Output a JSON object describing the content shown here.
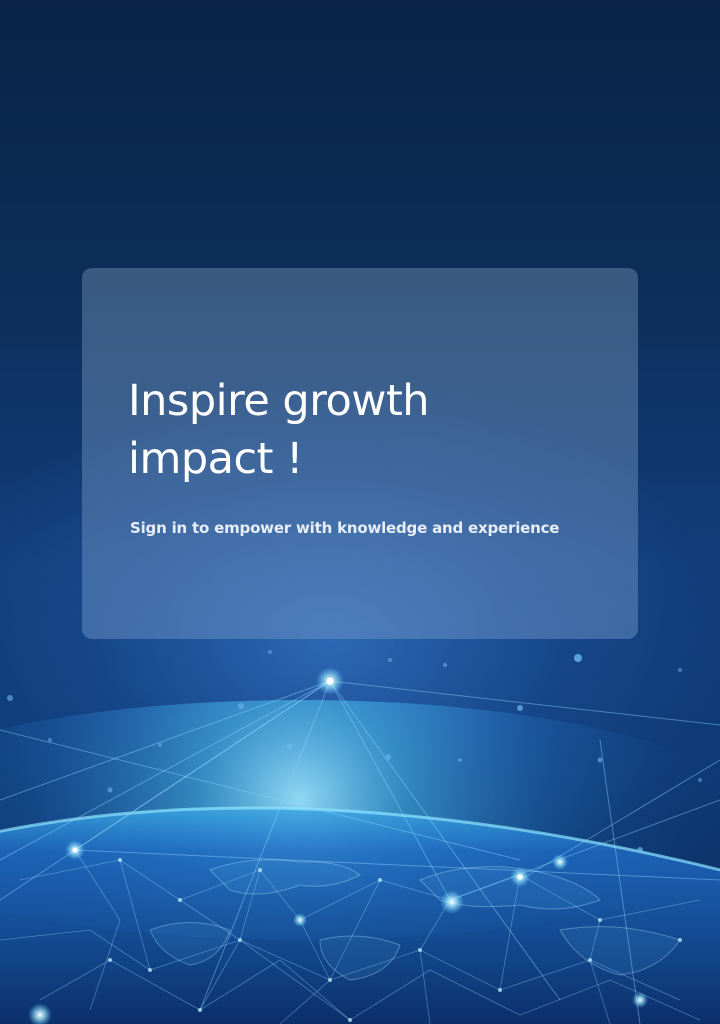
{
  "hero": {
    "title": "Inspire growth impact !",
    "subtitle": "Sign in to empower with knowledge and experience"
  },
  "colors": {
    "background_top": "#0a2346",
    "background_mid": "#113e7a",
    "glow": "#5fd4ff",
    "card_tint": "#7896b9"
  },
  "decoration": {
    "image": "digital-network-globe"
  }
}
